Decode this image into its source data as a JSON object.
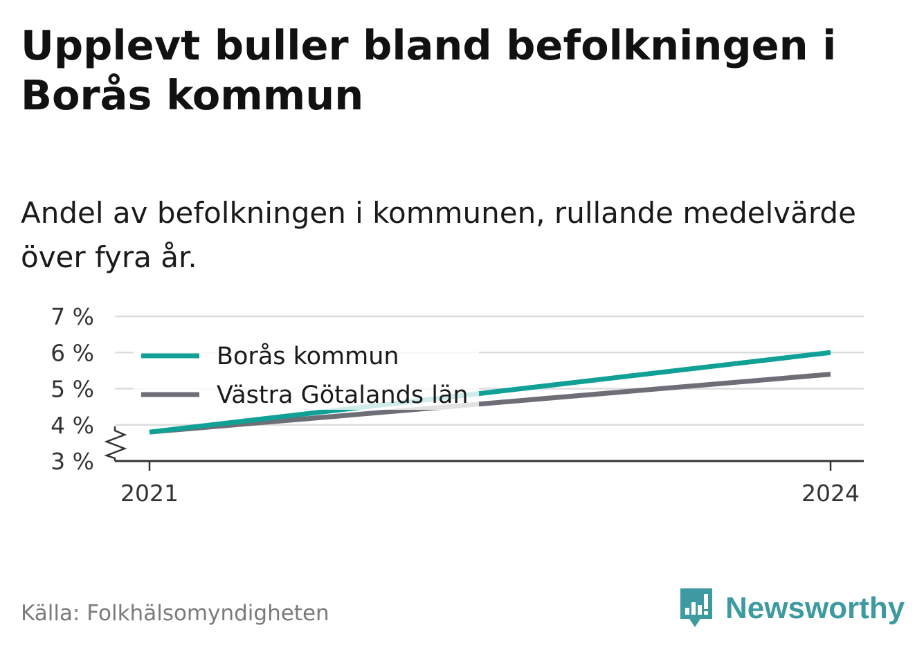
{
  "header": {
    "title": "Upplevt buller bland befolkningen i Borås kommun",
    "subtitle": "Andel av befolkningen i kommunen, rullande medelvärde över fyra år."
  },
  "footer": {
    "source": "Källa: Folkhälsomyndigheten",
    "brand": "Newsworthy",
    "brand_icon": "bar-chart-speech-bubble-icon",
    "brand_color": "#3d9aa0"
  },
  "chart_data": {
    "type": "line",
    "title": "",
    "xlabel": "",
    "ylabel": "",
    "x": [
      2021,
      2024
    ],
    "x_tick_labels": [
      "2021",
      "2024"
    ],
    "y_tick_labels": [
      "3 %",
      "4 %",
      "5 %",
      "6 %",
      "7 %"
    ],
    "ylim": [
      3,
      7
    ],
    "y_axis_break": true,
    "grid": true,
    "legend": "top-left",
    "series": [
      {
        "name": "Borås kommun",
        "values": [
          3.8,
          6.0
        ],
        "color": "#10a095"
      },
      {
        "name": "Västra Götalands län",
        "values": [
          3.8,
          5.4
        ],
        "color": "#6e6e76"
      }
    ]
  }
}
